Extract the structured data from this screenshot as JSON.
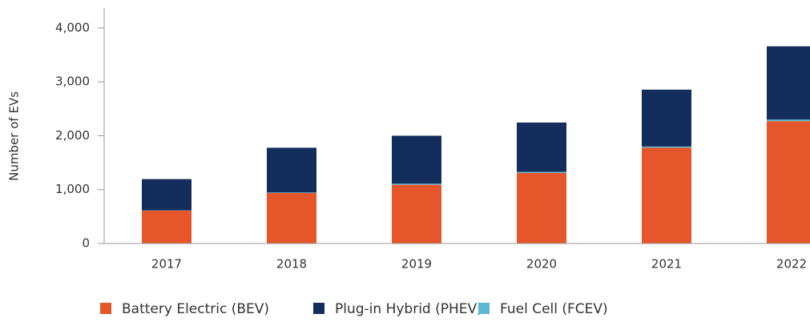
{
  "chart_data": {
    "type": "stacked-bar",
    "y_label": "Number of EVs",
    "categories": [
      "2017",
      "2018",
      "2019",
      "2020",
      "2021",
      "2022"
    ],
    "series": [
      {
        "name": "Battery Electric (BEV)",
        "color": "#e5562a",
        "values": [
          610,
          937,
          1090,
          1310,
          1780,
          2270
        ]
      },
      {
        "name": "Fuel Cell (FCEV)",
        "color": "#5bb8d2",
        "values": [
          5,
          10,
          20,
          20,
          20,
          30
        ]
      },
      {
        "name": "Plug-in Hybrid (PHEV)",
        "color": "#132d5c",
        "values": [
          580,
          830,
          890,
          915,
          1055,
          1360
        ]
      }
    ],
    "legend_order": [
      0,
      2,
      1
    ],
    "ylim": [
      0,
      4370
    ],
    "yticks": [
      0,
      {
        "value": 1000,
        "label": "1,000"
      },
      {
        "value": 2000,
        "label": "2,000"
      },
      {
        "value": 3000,
        "label": "3,000"
      },
      {
        "value": 4000,
        "label": "4,000"
      }
    ],
    "grid": false
  }
}
